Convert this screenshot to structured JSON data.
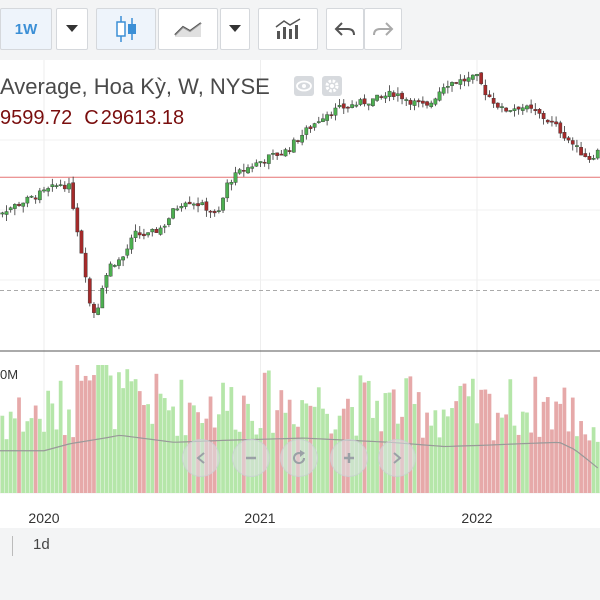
{
  "toolbar": {
    "interval_label": "1W",
    "icons": [
      "chevron-down-icon",
      "candlestick-icon",
      "line-chart-icon",
      "chevron-down-icon",
      "indicators-icon",
      "undo-icon",
      "redo-icon"
    ]
  },
  "header": {
    "symbol_title": "Average, Hoa Kỳ, W, NYSE",
    "open_value": "9599.72",
    "close_label": "C",
    "close_value": "29613.18"
  },
  "volume_label": "0M",
  "controls": [
    "scroll-left-icon",
    "zoom-out-icon",
    "reset-icon",
    "zoom-in-icon",
    "scroll-right-icon"
  ],
  "timeframe": "1d",
  "colors": {
    "up": "#4caf50",
    "down": "#a52a2a",
    "vol_up": "#b5e6a9",
    "vol_down": "#e6a9a9",
    "ma": "#999999"
  },
  "chart_data": {
    "type": "candlestick",
    "title": "Average, Hoa Kỳ, W, NYSE",
    "x_ticks": [
      "2020",
      "2021",
      "2022"
    ],
    "price_range": [
      18000,
      37500
    ],
    "reference_line": 29613.18,
    "dashed_line": 22000,
    "weekly_close_path": [
      [
        2019.75,
        27000
      ],
      [
        2019.88,
        27800
      ],
      [
        2020.0,
        28600
      ],
      [
        2020.08,
        29200
      ],
      [
        2020.12,
        28900
      ],
      [
        2020.16,
        25600
      ],
      [
        2020.19,
        23400
      ],
      [
        2020.21,
        21200
      ],
      [
        2020.24,
        20300
      ],
      [
        2020.27,
        22400
      ],
      [
        2020.31,
        23800
      ],
      [
        2020.36,
        24100
      ],
      [
        2020.42,
        25800
      ],
      [
        2020.48,
        25700
      ],
      [
        2020.55,
        26300
      ],
      [
        2020.6,
        27400
      ],
      [
        2020.65,
        28100
      ],
      [
        2020.7,
        27900
      ],
      [
        2020.76,
        27500
      ],
      [
        2020.8,
        26900
      ],
      [
        2020.85,
        29300
      ],
      [
        2020.9,
        29900
      ],
      [
        2020.96,
        30400
      ],
      [
        2021.03,
        30900
      ],
      [
        2021.12,
        31400
      ],
      [
        2021.2,
        32600
      ],
      [
        2021.3,
        33900
      ],
      [
        2021.38,
        34300
      ],
      [
        2021.46,
        34600
      ],
      [
        2021.54,
        34900
      ],
      [
        2021.62,
        35300
      ],
      [
        2021.7,
        34700
      ],
      [
        2021.77,
        34300
      ],
      [
        2021.85,
        35900
      ],
      [
        2021.92,
        36100
      ],
      [
        2022.0,
        36300
      ],
      [
        2022.04,
        35300
      ],
      [
        2022.12,
        34100
      ],
      [
        2022.2,
        34400
      ],
      [
        2022.28,
        33900
      ],
      [
        2022.36,
        33100
      ],
      [
        2022.42,
        32200
      ],
      [
        2022.47,
        31400
      ],
      [
        2022.52,
        30900
      ],
      [
        2022.57,
        31500
      ],
      [
        2022.62,
        32900
      ]
    ],
    "volume_ma_path": [
      [
        2019.75,
        0.6
      ],
      [
        2020.0,
        0.6
      ],
      [
        2020.12,
        0.7
      ],
      [
        2020.28,
        0.78
      ],
      [
        2020.35,
        0.82
      ],
      [
        2020.6,
        0.72
      ],
      [
        2020.85,
        0.75
      ],
      [
        2021.2,
        0.78
      ],
      [
        2021.6,
        0.72
      ],
      [
        2021.85,
        0.66
      ],
      [
        2022.05,
        0.68
      ],
      [
        2022.2,
        0.7
      ],
      [
        2022.38,
        0.72
      ],
      [
        2022.45,
        0.62
      ],
      [
        2022.52,
        0.45
      ],
      [
        2022.6,
        0.25
      ]
    ]
  }
}
